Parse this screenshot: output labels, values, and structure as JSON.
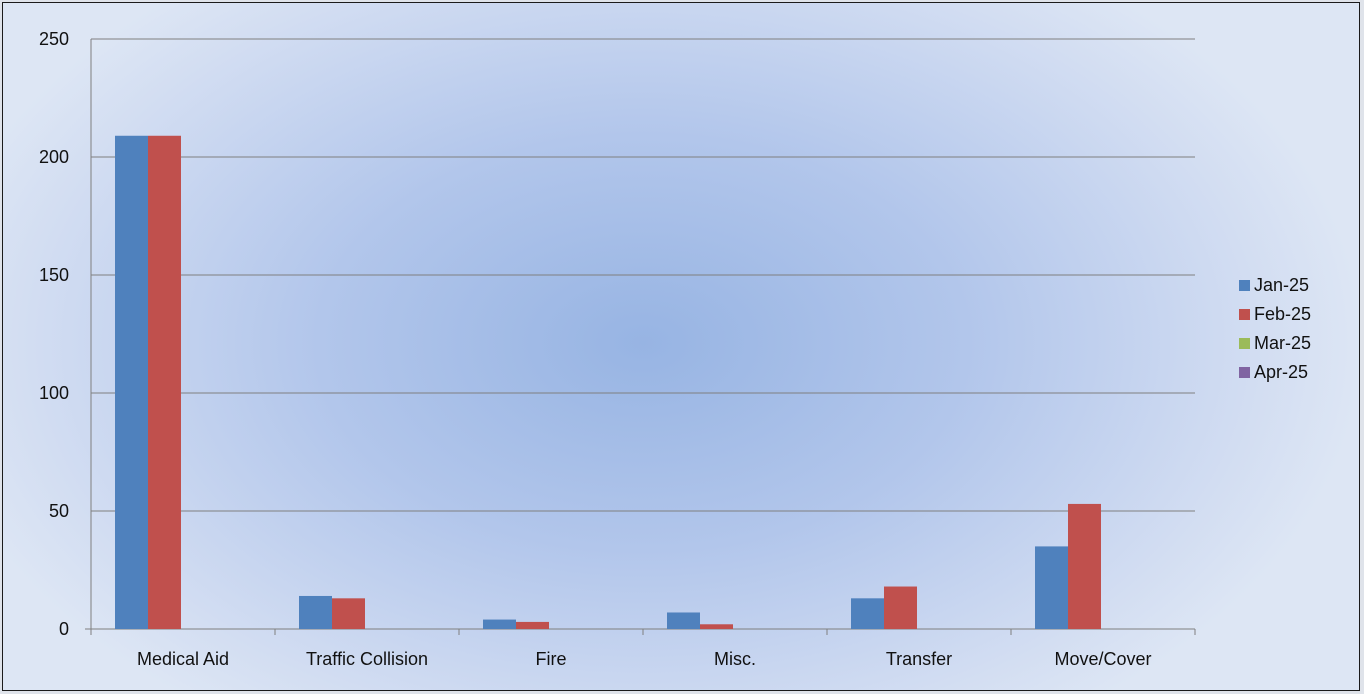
{
  "chart_data": {
    "type": "bar",
    "categories": [
      "Medical Aid",
      "Traffic Collision",
      "Fire",
      "Misc.",
      "Transfer",
      "Move/Cover"
    ],
    "series": [
      {
        "name": "Jan-25",
        "values": [
          209,
          14,
          4,
          7,
          13,
          35
        ],
        "color": "#4f81bd"
      },
      {
        "name": "Feb-25",
        "values": [
          209,
          13,
          3,
          2,
          18,
          53
        ],
        "color": "#c0504d"
      },
      {
        "name": "Mar-25",
        "values": [
          null,
          null,
          null,
          null,
          null,
          null
        ],
        "color": "#9bbb59"
      },
      {
        "name": "Apr-25",
        "values": [
          null,
          null,
          null,
          null,
          null,
          null
        ],
        "color": "#8064a2"
      }
    ],
    "yticks": [
      "0",
      "50",
      "100",
      "150",
      "200",
      "250"
    ],
    "ylim": [
      0,
      250
    ],
    "grid": true,
    "legend_position": "right"
  }
}
